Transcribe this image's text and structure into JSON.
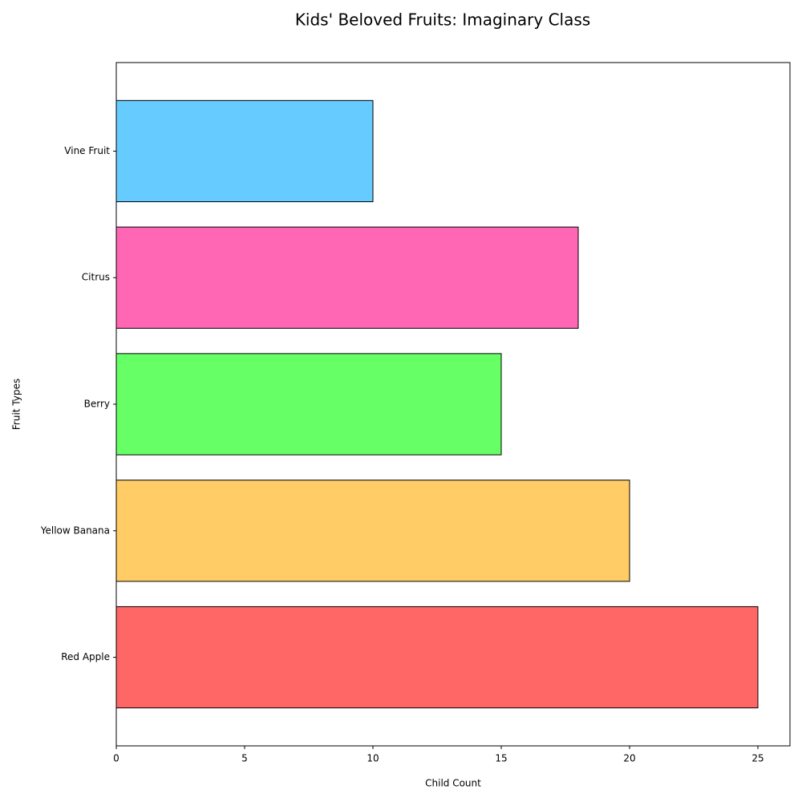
{
  "chart_data": {
    "type": "bar",
    "orientation": "horizontal",
    "title": "Kids' Beloved Fruits: Imaginary Class",
    "xlabel": "Child Count",
    "ylabel": "Fruit Types",
    "categories": [
      "Red Apple",
      "Yellow Banana",
      "Berry",
      "Citrus",
      "Vine Fruit"
    ],
    "values": [
      25,
      20,
      15,
      18,
      10
    ],
    "colors": [
      "#ff6666",
      "#ffcc66",
      "#66ff66",
      "#ff66b3",
      "#66ccff"
    ],
    "edge_color": "#000000",
    "xlim": [
      0,
      26.25
    ],
    "x_ticks": [
      0,
      5,
      10,
      15,
      20,
      25
    ],
    "grid": false,
    "legend": "none"
  }
}
